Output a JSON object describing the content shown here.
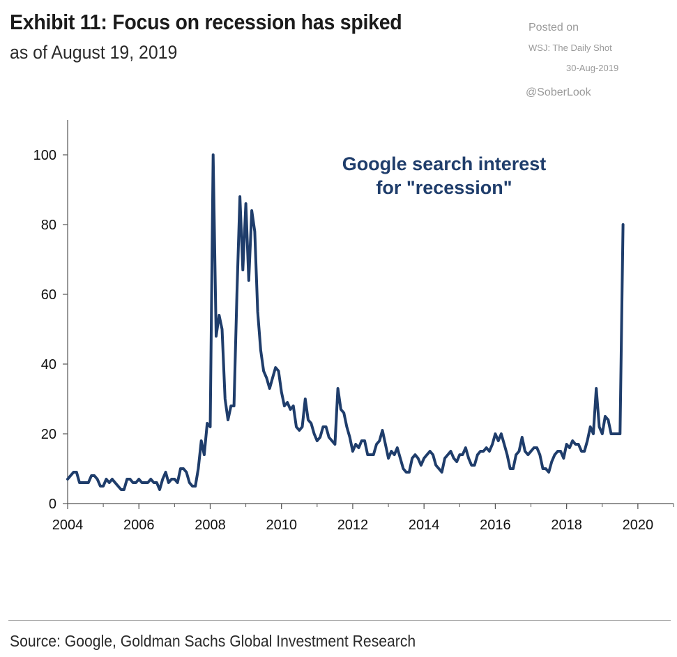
{
  "header": {
    "title": "Exhibit 11: Focus on recession has spiked",
    "subtitle": "as of August 19, 2019"
  },
  "watermark": {
    "line1": "Posted on",
    "line2": "WSJ: The Daily Shot",
    "line3": "30-Aug-2019",
    "line4": "@SoberLook"
  },
  "footer": {
    "source": "Source: Google, Goldman Sachs Global Investment Research"
  },
  "colors": {
    "line": "#1f3d6b",
    "annotation": "#1f3d6b",
    "axis": "#555555"
  },
  "chart_data": {
    "type": "line",
    "title": "",
    "annotation": [
      "Google search interest",
      "for \"recession\""
    ],
    "xlabel": "",
    "ylabel": "",
    "xlim": [
      2004,
      2021
    ],
    "ylim": [
      0,
      110
    ],
    "x_ticks": [
      2004,
      2006,
      2008,
      2010,
      2012,
      2014,
      2016,
      2018,
      2020
    ],
    "y_ticks": [
      0,
      20,
      40,
      60,
      80,
      100
    ],
    "grid": false,
    "series": [
      {
        "x": [
          2004.0,
          2004.083,
          2004.167,
          2004.25,
          2004.333,
          2004.417,
          2004.5,
          2004.583,
          2004.667,
          2004.75,
          2004.833,
          2004.917,
          2005.0,
          2005.083,
          2005.167,
          2005.25,
          2005.333,
          2005.417,
          2005.5,
          2005.583,
          2005.667,
          2005.75,
          2005.833,
          2005.917,
          2006.0,
          2006.083,
          2006.167,
          2006.25,
          2006.333,
          2006.417,
          2006.5,
          2006.583,
          2006.667,
          2006.75,
          2006.833,
          2006.917,
          2007.0,
          2007.083,
          2007.167,
          2007.25,
          2007.333,
          2007.417,
          2007.5,
          2007.583,
          2007.667,
          2007.75,
          2007.833,
          2007.917,
          2008.0,
          2008.083,
          2008.167,
          2008.25,
          2008.333,
          2008.417,
          2008.5,
          2008.583,
          2008.667,
          2008.75,
          2008.833,
          2008.917,
          2009.0,
          2009.083,
          2009.167,
          2009.25,
          2009.333,
          2009.417,
          2009.5,
          2009.583,
          2009.667,
          2009.75,
          2009.833,
          2009.917,
          2010.0,
          2010.083,
          2010.167,
          2010.25,
          2010.333,
          2010.417,
          2010.5,
          2010.583,
          2010.667,
          2010.75,
          2010.833,
          2010.917,
          2011.0,
          2011.083,
          2011.167,
          2011.25,
          2011.333,
          2011.417,
          2011.5,
          2011.583,
          2011.667,
          2011.75,
          2011.833,
          2011.917,
          2012.0,
          2012.083,
          2012.167,
          2012.25,
          2012.333,
          2012.417,
          2012.5,
          2012.583,
          2012.667,
          2012.75,
          2012.833,
          2012.917,
          2013.0,
          2013.083,
          2013.167,
          2013.25,
          2013.333,
          2013.417,
          2013.5,
          2013.583,
          2013.667,
          2013.75,
          2013.833,
          2013.917,
          2014.0,
          2014.083,
          2014.167,
          2014.25,
          2014.333,
          2014.417,
          2014.5,
          2014.583,
          2014.667,
          2014.75,
          2014.833,
          2014.917,
          2015.0,
          2015.083,
          2015.167,
          2015.25,
          2015.333,
          2015.417,
          2015.5,
          2015.583,
          2015.667,
          2015.75,
          2015.833,
          2015.917,
          2016.0,
          2016.083,
          2016.167,
          2016.25,
          2016.333,
          2016.417,
          2016.5,
          2016.583,
          2016.667,
          2016.75,
          2016.833,
          2016.917,
          2017.0,
          2017.083,
          2017.167,
          2017.25,
          2017.333,
          2017.417,
          2017.5,
          2017.583,
          2017.667,
          2017.75,
          2017.833,
          2017.917,
          2018.0,
          2018.083,
          2018.167,
          2018.25,
          2018.333,
          2018.417,
          2018.5,
          2018.583,
          2018.667,
          2018.75,
          2018.833,
          2018.917,
          2019.0,
          2019.083,
          2019.167,
          2019.25,
          2019.333,
          2019.417,
          2019.5,
          2019.583
        ],
        "y": [
          7,
          8,
          9,
          9,
          6,
          6,
          6,
          6,
          8,
          8,
          7,
          5,
          5,
          7,
          6,
          7,
          6,
          5,
          4,
          4,
          7,
          7,
          6,
          6,
          7,
          6,
          6,
          6,
          7,
          6,
          6,
          4,
          7,
          9,
          6,
          7,
          7,
          6,
          10,
          10,
          9,
          6,
          5,
          5,
          10,
          18,
          14,
          23,
          22,
          100,
          48,
          54,
          50,
          30,
          24,
          28,
          28,
          60,
          88,
          67,
          86,
          64,
          84,
          78,
          55,
          44,
          38,
          36,
          33,
          36,
          39,
          38,
          32,
          28,
          29,
          27,
          28,
          22,
          21,
          22,
          30,
          24,
          23,
          20,
          18,
          19,
          22,
          22,
          19,
          18,
          17,
          33,
          27,
          26,
          22,
          19,
          15,
          17,
          16,
          18,
          18,
          14,
          14,
          14,
          17,
          18,
          21,
          17,
          13,
          15,
          14,
          16,
          13,
          10,
          9,
          9,
          13,
          14,
          13,
          11,
          13,
          14,
          15,
          14,
          11,
          10,
          9,
          13,
          14,
          15,
          13,
          12,
          14,
          14,
          16,
          13,
          11,
          11,
          14,
          15,
          15,
          16,
          15,
          17,
          20,
          18,
          20,
          17,
          14,
          10,
          10,
          14,
          15,
          19,
          15,
          14,
          15,
          16,
          16,
          14,
          10,
          10,
          9,
          12,
          14,
          15,
          15,
          13,
          17,
          16,
          18,
          17,
          17,
          15,
          15,
          18,
          22,
          20,
          33,
          22,
          20,
          25,
          24,
          20,
          20,
          20,
          20,
          80
        ]
      }
    ]
  }
}
